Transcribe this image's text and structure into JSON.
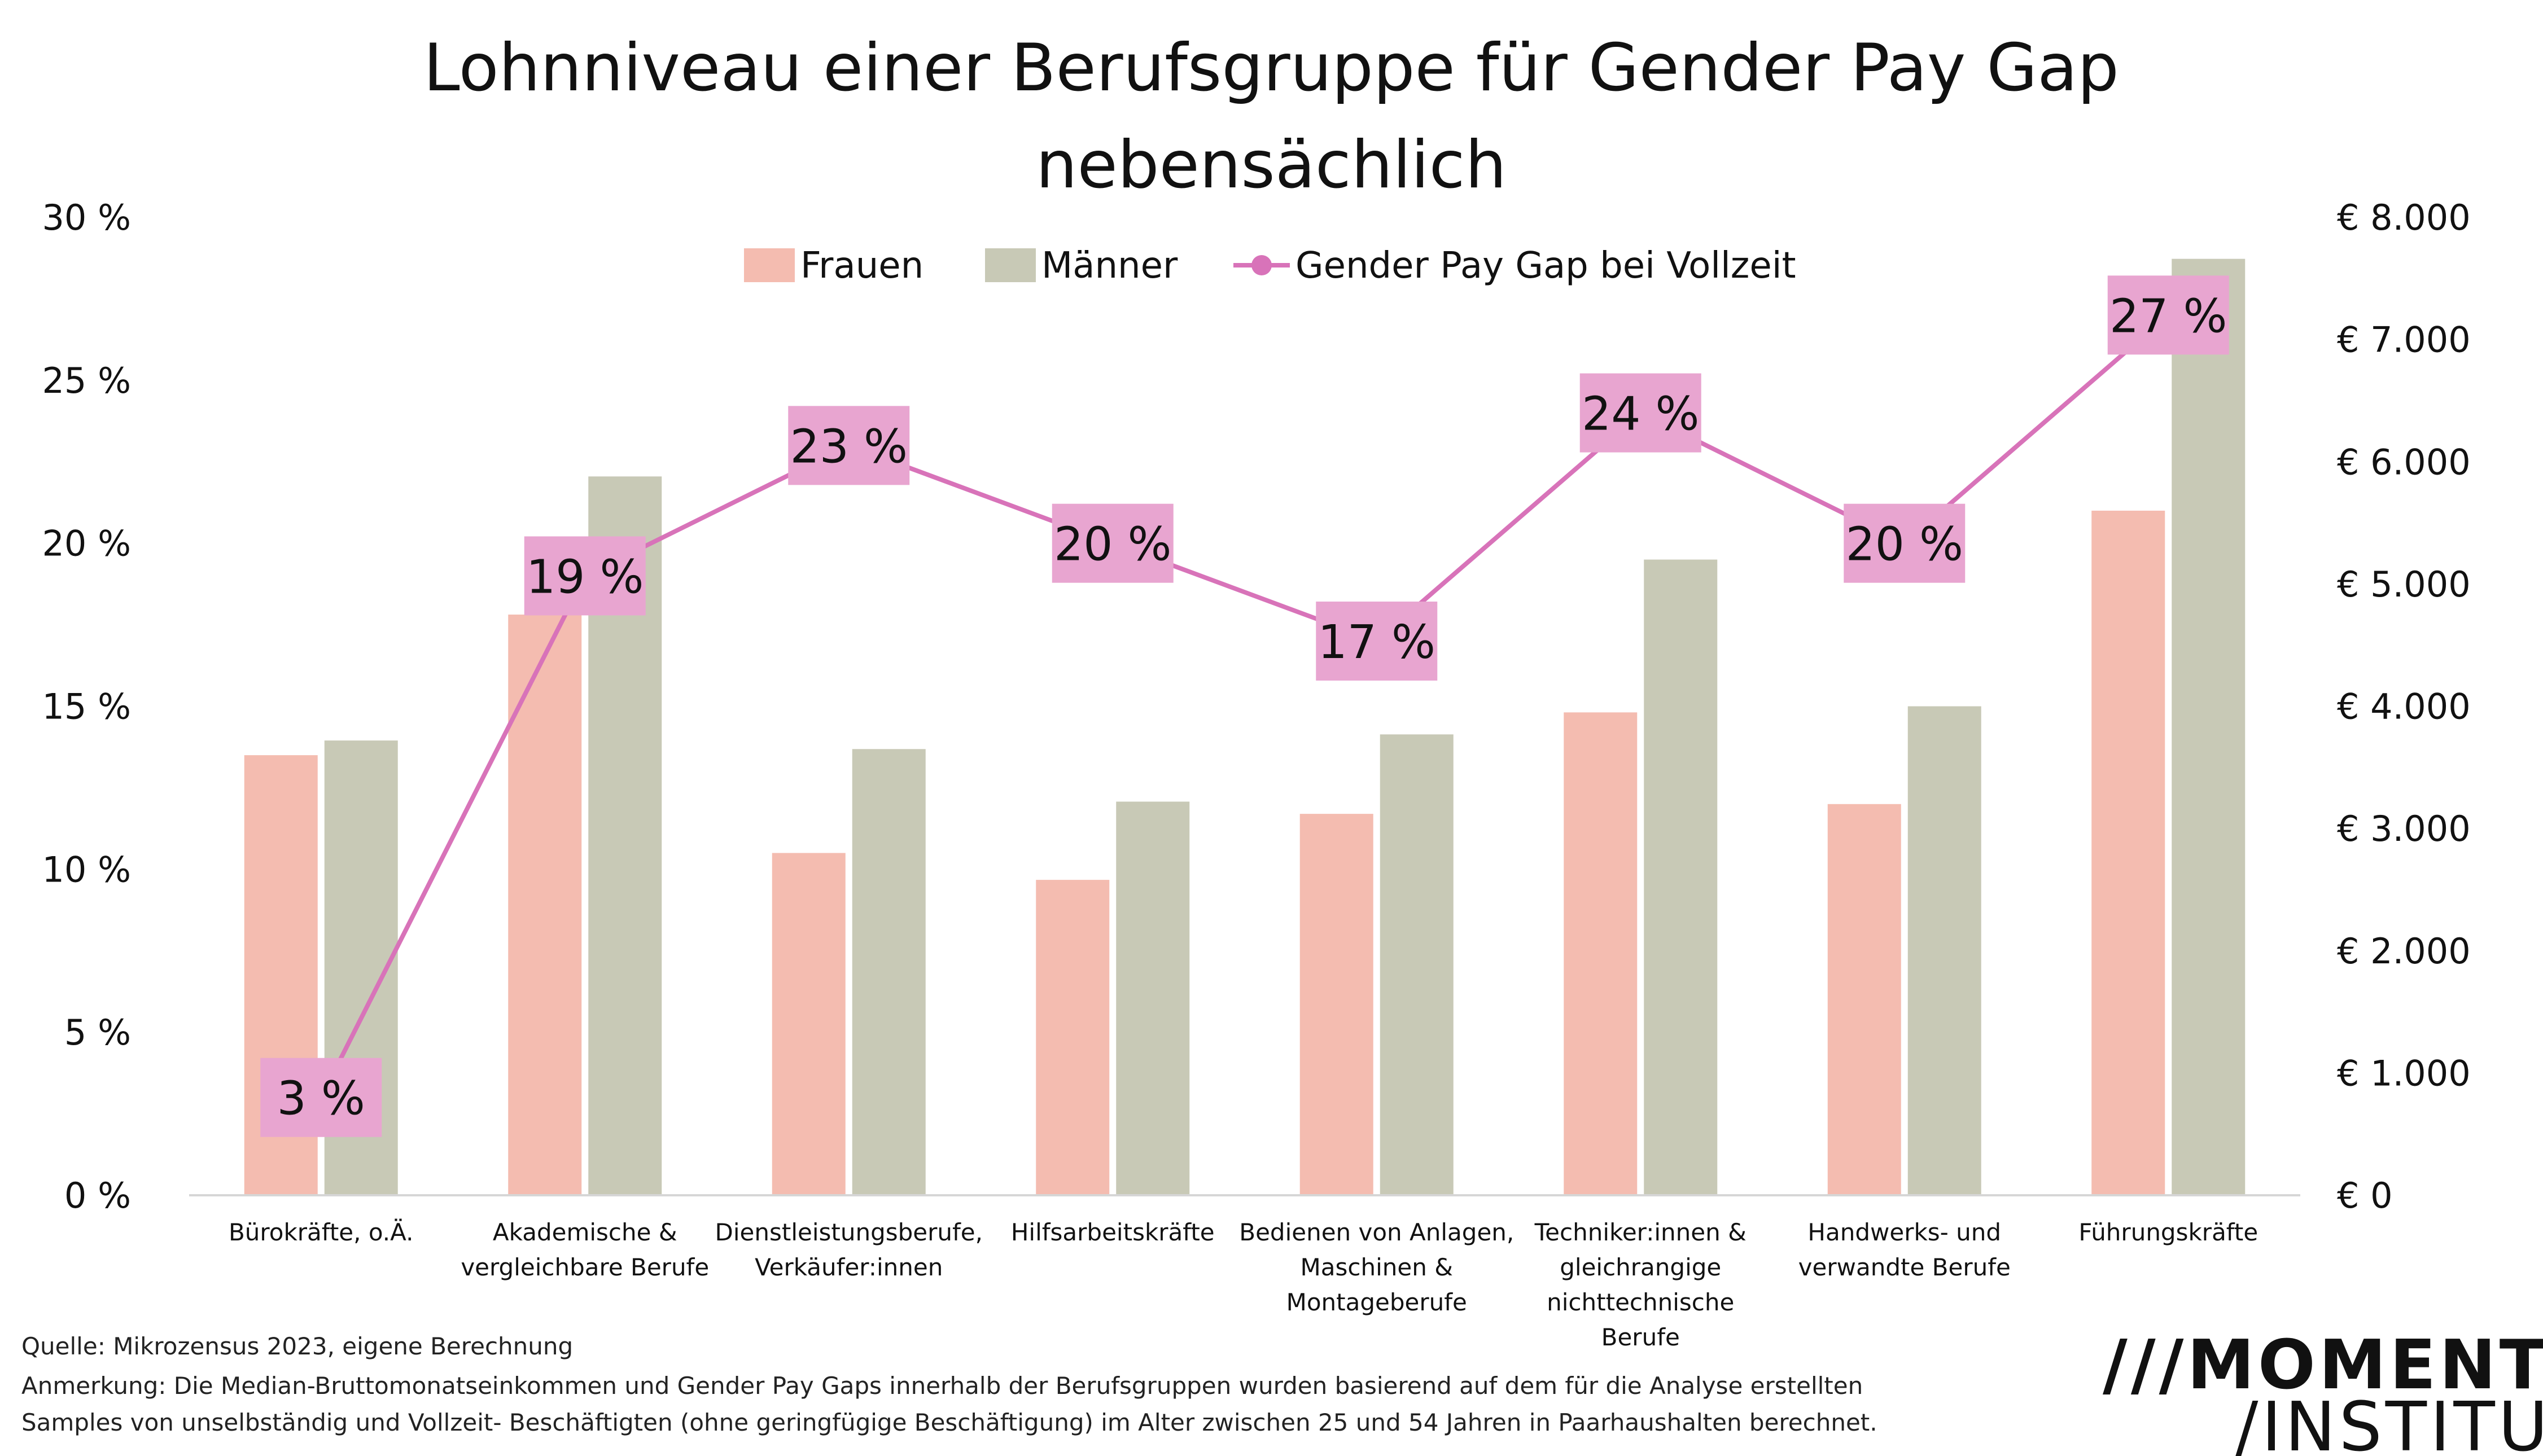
{
  "chart_data": {
    "type": "bar",
    "title_lines": [
      "Lohnniveau einer Berufsgruppe für Gender Pay Gap",
      "nebensächlich"
    ],
    "categories": [
      [
        "Bürokräfte, o.Ä."
      ],
      [
        "Akademische &",
        "vergleichbare Berufe"
      ],
      [
        "Dienstleistungsberufe,",
        "Verkäufer:innen"
      ],
      [
        "Hilfsarbeitskräfte"
      ],
      [
        "Bedienen von Anlagen,",
        "Maschinen &",
        "Montageberufe"
      ],
      [
        "Techniker:innen &",
        "gleichrangige",
        "nichttechnische",
        "Berufe"
      ],
      [
        "Handwerks- und",
        "verwandte Berufe"
      ],
      [
        "Führungskräfte"
      ]
    ],
    "series": [
      {
        "name": "Frauen",
        "axis": "right",
        "color": "#f4bcb0",
        "values": [
          3600,
          4750,
          2800,
          2580,
          3120,
          3950,
          3200,
          5600
        ]
      },
      {
        "name": "Männer",
        "axis": "right",
        "color": "#c8c9b6",
        "values": [
          3720,
          5880,
          3650,
          3220,
          3770,
          5200,
          4000,
          7660
        ]
      },
      {
        "name": "Gender Pay Gap bei Vollzeit",
        "axis": "left",
        "type": "line",
        "color": "#d873b9",
        "values": [
          3,
          19,
          23,
          20,
          17,
          24,
          20,
          27
        ],
        "labels": [
          "3 %",
          "19 %",
          "23 %",
          "20 %",
          "17 %",
          "24 %",
          "20 %",
          "27 %"
        ]
      }
    ],
    "left_axis": {
      "ticks": [
        "0 %",
        "5 %",
        "10 %",
        "15 %",
        "20 %",
        "25 %",
        "30 %"
      ],
      "range": [
        0,
        30
      ]
    },
    "right_axis": {
      "ticks": [
        "€ 0",
        "€ 1.000",
        "€ 2.000",
        "€ 3.000",
        "€ 4.000",
        "€ 5.000",
        "€ 6.000",
        "€ 7.000",
        "€ 8.000"
      ],
      "range": [
        0,
        8000
      ]
    },
    "grid": false,
    "legend_position": "top-center"
  },
  "footnotes": {
    "source": "Quelle: Mikrozensus 2023, eigene Berechnung",
    "note_line1": "Anmerkung: Die Median-Bruttomonatseinkommen und Gender Pay Gaps innerhalb der Berufsgruppen wurden basierend auf dem für die Analyse erstellten",
    "note_line2": "Samples von unselbständig und Vollzeit- Beschäftigten (ohne geringfügige Beschäftigung)  im Alter zwischen 25 und 54 Jahren in Paarhaushalten berechnet."
  },
  "logo": {
    "line1": "MOMENTUM",
    "line2": "/INSTITUT"
  },
  "colors": {
    "frauen": "#f4bcb0",
    "maenner": "#c8c9b6",
    "gap_line": "#d873b9",
    "gap_label_bg": "#e8a5d0"
  }
}
